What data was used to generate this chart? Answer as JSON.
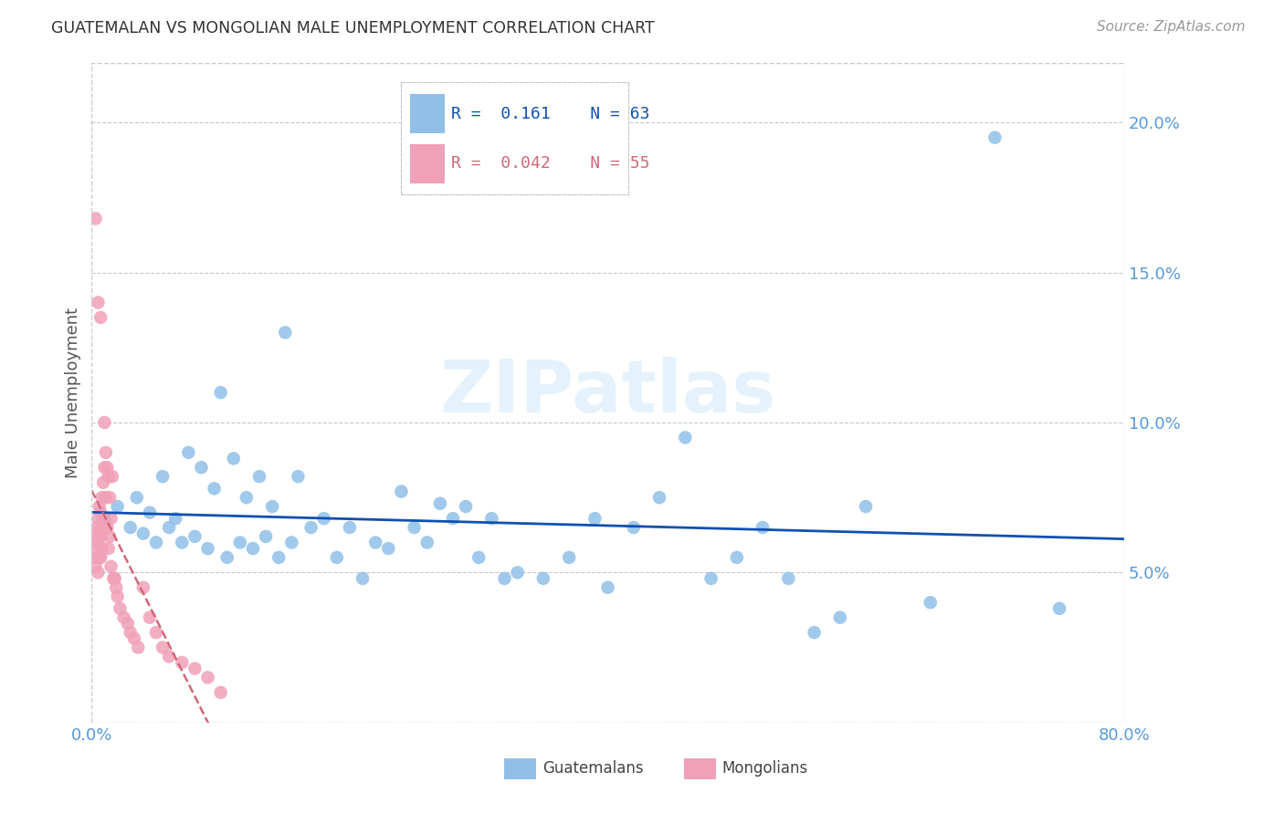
{
  "title": "GUATEMALAN VS MONGOLIAN MALE UNEMPLOYMENT CORRELATION CHART",
  "source": "Source: ZipAtlas.com",
  "ylabel": "Male Unemployment",
  "legend_blue_label": "Guatemalans",
  "legend_pink_label": "Mongolians",
  "legend_blue_R": "0.161",
  "legend_blue_N": "63",
  "legend_pink_R": "0.042",
  "legend_pink_N": "55",
  "xlim": [
    0.0,
    0.8
  ],
  "ylim": [
    0.0,
    0.22
  ],
  "yticks": [
    0.05,
    0.1,
    0.15,
    0.2
  ],
  "xticks": [
    0.0,
    0.8
  ],
  "blue_color": "#90C0E8",
  "pink_color": "#F0A0B8",
  "blue_line_color": "#1050B0",
  "pink_line_color": "#D06878",
  "grid_color": "#C8C8C8",
  "tick_color": "#5599DD",
  "title_color": "#333333",
  "blue_scatter_x": [
    0.01,
    0.02,
    0.03,
    0.035,
    0.04,
    0.045,
    0.05,
    0.055,
    0.06,
    0.065,
    0.07,
    0.075,
    0.08,
    0.085,
    0.09,
    0.095,
    0.1,
    0.105,
    0.11,
    0.115,
    0.12,
    0.125,
    0.13,
    0.135,
    0.14,
    0.145,
    0.15,
    0.155,
    0.16,
    0.17,
    0.18,
    0.19,
    0.2,
    0.21,
    0.22,
    0.23,
    0.24,
    0.25,
    0.26,
    0.27,
    0.28,
    0.29,
    0.3,
    0.31,
    0.32,
    0.33,
    0.35,
    0.37,
    0.39,
    0.4,
    0.42,
    0.44,
    0.46,
    0.48,
    0.5,
    0.52,
    0.54,
    0.56,
    0.58,
    0.6,
    0.65,
    0.7,
    0.75
  ],
  "blue_scatter_y": [
    0.068,
    0.072,
    0.065,
    0.075,
    0.063,
    0.07,
    0.06,
    0.082,
    0.065,
    0.068,
    0.06,
    0.09,
    0.062,
    0.085,
    0.058,
    0.078,
    0.11,
    0.055,
    0.088,
    0.06,
    0.075,
    0.058,
    0.082,
    0.062,
    0.072,
    0.055,
    0.13,
    0.06,
    0.082,
    0.065,
    0.068,
    0.055,
    0.065,
    0.048,
    0.06,
    0.058,
    0.077,
    0.065,
    0.06,
    0.073,
    0.068,
    0.072,
    0.055,
    0.068,
    0.048,
    0.05,
    0.048,
    0.055,
    0.068,
    0.045,
    0.065,
    0.075,
    0.095,
    0.048,
    0.055,
    0.065,
    0.048,
    0.03,
    0.035,
    0.072,
    0.04,
    0.195,
    0.038
  ],
  "pink_scatter_x": [
    0.003,
    0.003,
    0.003,
    0.004,
    0.004,
    0.005,
    0.005,
    0.005,
    0.006,
    0.006,
    0.006,
    0.007,
    0.007,
    0.007,
    0.008,
    0.008,
    0.008,
    0.009,
    0.009,
    0.01,
    0.01,
    0.01,
    0.011,
    0.011,
    0.012,
    0.012,
    0.013,
    0.013,
    0.014,
    0.014,
    0.015,
    0.015,
    0.016,
    0.017,
    0.018,
    0.019,
    0.02,
    0.022,
    0.025,
    0.028,
    0.03,
    0.033,
    0.036,
    0.04,
    0.045,
    0.05,
    0.055,
    0.06,
    0.07,
    0.08,
    0.09,
    0.1,
    0.003,
    0.005,
    0.007
  ],
  "pink_scatter_y": [
    0.062,
    0.058,
    0.052,
    0.065,
    0.055,
    0.068,
    0.06,
    0.05,
    0.072,
    0.063,
    0.055,
    0.07,
    0.062,
    0.055,
    0.075,
    0.065,
    0.058,
    0.08,
    0.068,
    0.1,
    0.085,
    0.068,
    0.09,
    0.075,
    0.085,
    0.065,
    0.082,
    0.058,
    0.075,
    0.062,
    0.068,
    0.052,
    0.082,
    0.048,
    0.048,
    0.045,
    0.042,
    0.038,
    0.035,
    0.033,
    0.03,
    0.028,
    0.025,
    0.045,
    0.035,
    0.03,
    0.025,
    0.022,
    0.02,
    0.018,
    0.015,
    0.01,
    0.168,
    0.14,
    0.135
  ]
}
